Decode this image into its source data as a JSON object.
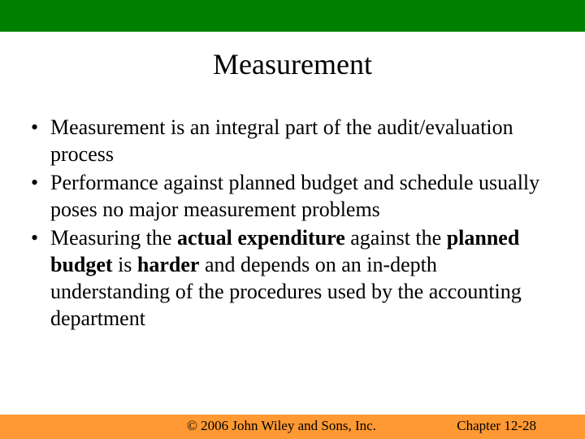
{
  "colors": {
    "topBar": "#008000",
    "bottomBar": "#ff9933",
    "background": "#ffffff",
    "text": "#000000"
  },
  "layout": {
    "topBarHeight": 39,
    "bottomBarHeight": 30,
    "titleTop": 58,
    "titleFontSize": 36,
    "contentTop": 140,
    "bodyFontSize": 26,
    "bodyLineHeight": 33,
    "footerFontSize": 17
  },
  "title": "Measurement",
  "bullets": [
    {
      "segments": [
        {
          "text": "Measurement is an integral part of the audit/evaluation process",
          "bold": false
        }
      ]
    },
    {
      "segments": [
        {
          "text": "Performance against planned budget and schedule usually poses no major measurement problems",
          "bold": false
        }
      ]
    },
    {
      "segments": [
        {
          "text": "Measuring the ",
          "bold": false
        },
        {
          "text": "actual expenditure",
          "bold": true
        },
        {
          "text": " against the ",
          "bold": false
        },
        {
          "text": "planned budget",
          "bold": true
        },
        {
          "text": " is ",
          "bold": false
        },
        {
          "text": "harder",
          "bold": true
        },
        {
          "text": " and depends on an in-depth understanding of the procedures used by the accounting department",
          "bold": false
        }
      ]
    }
  ],
  "footer": {
    "copyright": "© 2006 John Wiley and Sons, Inc.",
    "chapter": "Chapter  12-28"
  }
}
